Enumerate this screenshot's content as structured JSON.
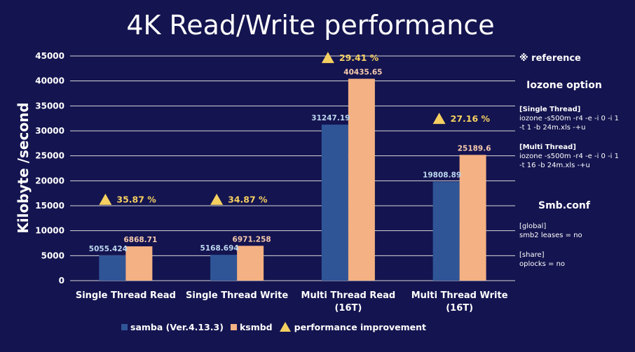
{
  "chart_data": {
    "type": "bar",
    "title": "4K Read/Write performance",
    "ylabel": "Kilobyte /second",
    "ylim": [
      0,
      45000
    ],
    "yticks": [
      "0",
      "5000",
      "10000",
      "15000",
      "20000",
      "25000",
      "30000",
      "35000",
      "40000",
      "45000"
    ],
    "categories": [
      [
        "Single Thread Read"
      ],
      [
        "Single Thread Write"
      ],
      [
        "Multi Thread Read",
        "(16T)"
      ],
      [
        "Multi Thread Write",
        "(16T)"
      ]
    ],
    "series": [
      {
        "name": "samba (Ver.4.13.3)",
        "values": [
          5055.424,
          5168.694,
          31247.19,
          19808.89
        ],
        "labels": [
          "5055.424",
          "5168.694",
          "31247.19",
          "19808.89"
        ],
        "color": "#2f5597"
      },
      {
        "name": "ksmbd",
        "values": [
          6868.71,
          6971.258,
          40435.65,
          25189.6
        ],
        "labels": [
          "6868.71",
          "6971.258",
          "40435.65",
          "25189.6"
        ],
        "color": "#f4b183"
      }
    ],
    "improvement": {
      "name": "performance improvement",
      "labels": [
        "35.87 %",
        "34.87 %",
        "29.41 %",
        "27.16 %"
      ],
      "level": [
        16300,
        16300,
        44700,
        32500
      ],
      "color": "#f5d060"
    },
    "grid": true,
    "legend_position": "bottom"
  },
  "side": {
    "reference": "※ reference",
    "iozone_heading": "Iozone option",
    "single_label": "[Single Thread]",
    "single_cmd": [
      "iozone -s500m -r4 -e -i 0 -i 1",
      "-t 1 -b 24m.xls -+u"
    ],
    "multi_label": "[Multi Thread]",
    "multi_cmd": [
      "iozone -s500m -r4 -e -i 0 -i 1",
      "-t 16 -b 24m.xls -+u"
    ],
    "smb_heading": "Smb.conf",
    "global_lines": [
      "[global]",
      "smb2 leases = no"
    ],
    "share_lines": [
      "[share]",
      "oplocks = no"
    ]
  },
  "colors": {
    "background": "#141450",
    "text": "#ffffff",
    "gridline": "#d9d9d9",
    "label_light": "#bdd7ee",
    "label_orange": "#f8cbad"
  }
}
